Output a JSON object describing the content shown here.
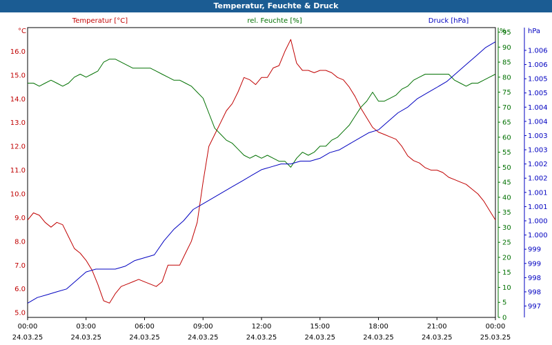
{
  "title": "Temperatur, Feuchte & Druck",
  "colors": {
    "temperature": "#c00000",
    "humidity": "#007000",
    "pressure": "#0000c0",
    "titlebar": "#1b5c93"
  },
  "chart_data": {
    "type": "line",
    "title": "Temperatur, Feuchte & Druck",
    "grid": true,
    "x_ticks": [
      {
        "time": "00:00",
        "date": "24.03.25"
      },
      {
        "time": "03:00",
        "date": "24.03.25"
      },
      {
        "time": "06:00",
        "date": "24.03.25"
      },
      {
        "time": "09:00",
        "date": "24.03.25"
      },
      {
        "time": "12:00",
        "date": "24.03.25"
      },
      {
        "time": "15:00",
        "date": "24.03.25"
      },
      {
        "time": "18:00",
        "date": "24.03.25"
      },
      {
        "time": "21:00",
        "date": "24.03.25"
      },
      {
        "time": "00:00",
        "date": "25.03.25"
      }
    ],
    "x_range_hours": [
      0,
      24
    ],
    "axes": {
      "temperature": {
        "label": "Temperatur [°C]",
        "unit": "°C",
        "range": [
          4.8,
          17.0
        ],
        "ticks": [
          "5.0",
          "6.0",
          "7.0",
          "8.0",
          "9.0",
          "10.0",
          "11.0",
          "12.0",
          "13.0",
          "14.0",
          "15.0",
          "16.0"
        ],
        "tick_values": [
          5,
          6,
          7,
          8,
          9,
          10,
          11,
          12,
          13,
          14,
          15,
          16
        ]
      },
      "humidity": {
        "label": "rel. Feuchte [%]",
        "unit": "%",
        "range": [
          0,
          96.5
        ],
        "ticks": [
          "0",
          "5",
          "10",
          "15",
          "20",
          "25",
          "30",
          "35",
          "40",
          "45",
          "50",
          "55",
          "60",
          "65",
          "70",
          "75",
          "80",
          "85",
          "90",
          "95"
        ],
        "tick_values": [
          0,
          5,
          10,
          15,
          20,
          25,
          30,
          35,
          40,
          45,
          50,
          55,
          60,
          65,
          70,
          75,
          80,
          85,
          90,
          95
        ]
      },
      "pressure": {
        "label": "Druck [hPa]",
        "unit": "hPa",
        "range": [
          996.6,
          1006.8
        ],
        "ticks": [
          "997",
          "998",
          "998",
          "999",
          "999",
          "1.000",
          "1.000",
          "1.001",
          "1.001",
          "1.002",
          "1.002",
          "1.003",
          "1.003",
          "1.004",
          "1.004",
          "1.005",
          "1.005",
          "1.006",
          "1.006"
        ],
        "tick_values": [
          997.0,
          997.5,
          998.0,
          998.5,
          999.0,
          999.5,
          1000.0,
          1000.5,
          1001.0,
          1001.5,
          1002.0,
          1002.5,
          1003.0,
          1003.5,
          1004.0,
          1004.5,
          1005.0,
          1005.5,
          1006.0
        ]
      }
    },
    "series": [
      {
        "name": "Temperatur [°C]",
        "axis": "temperature",
        "points": [
          [
            0,
            8.9
          ],
          [
            0.3,
            9.2
          ],
          [
            0.6,
            9.1
          ],
          [
            0.9,
            8.8
          ],
          [
            1.2,
            8.6
          ],
          [
            1.5,
            8.8
          ],
          [
            1.8,
            8.7
          ],
          [
            2.1,
            8.2
          ],
          [
            2.4,
            7.7
          ],
          [
            2.7,
            7.5
          ],
          [
            3.0,
            7.2
          ],
          [
            3.3,
            6.8
          ],
          [
            3.6,
            6.2
          ],
          [
            3.9,
            5.5
          ],
          [
            4.2,
            5.4
          ],
          [
            4.5,
            5.8
          ],
          [
            4.8,
            6.1
          ],
          [
            5.1,
            6.2
          ],
          [
            5.4,
            6.3
          ],
          [
            5.7,
            6.4
          ],
          [
            6.0,
            6.3
          ],
          [
            6.3,
            6.2
          ],
          [
            6.6,
            6.1
          ],
          [
            6.9,
            6.3
          ],
          [
            7.2,
            7.0
          ],
          [
            7.5,
            7.0
          ],
          [
            7.8,
            7.0
          ],
          [
            8.1,
            7.5
          ],
          [
            8.4,
            8.0
          ],
          [
            8.7,
            8.8
          ],
          [
            9.0,
            10.5
          ],
          [
            9.3,
            12.0
          ],
          [
            9.6,
            12.5
          ],
          [
            9.9,
            13.0
          ],
          [
            10.2,
            13.5
          ],
          [
            10.5,
            13.8
          ],
          [
            10.8,
            14.3
          ],
          [
            11.1,
            14.9
          ],
          [
            11.4,
            14.8
          ],
          [
            11.7,
            14.6
          ],
          [
            12.0,
            14.9
          ],
          [
            12.3,
            14.9
          ],
          [
            12.6,
            15.3
          ],
          [
            12.9,
            15.4
          ],
          [
            13.2,
            16.0
          ],
          [
            13.5,
            16.5
          ],
          [
            13.8,
            15.5
          ],
          [
            14.1,
            15.2
          ],
          [
            14.4,
            15.2
          ],
          [
            14.7,
            15.1
          ],
          [
            15.0,
            15.2
          ],
          [
            15.3,
            15.2
          ],
          [
            15.6,
            15.1
          ],
          [
            15.9,
            14.9
          ],
          [
            16.2,
            14.8
          ],
          [
            16.5,
            14.5
          ],
          [
            16.8,
            14.1
          ],
          [
            17.1,
            13.6
          ],
          [
            17.4,
            13.2
          ],
          [
            17.7,
            12.8
          ],
          [
            18.0,
            12.6
          ],
          [
            18.3,
            12.5
          ],
          [
            18.6,
            12.4
          ],
          [
            18.9,
            12.3
          ],
          [
            19.2,
            12.0
          ],
          [
            19.5,
            11.6
          ],
          [
            19.8,
            11.4
          ],
          [
            20.1,
            11.3
          ],
          [
            20.4,
            11.1
          ],
          [
            20.7,
            11.0
          ],
          [
            21.0,
            11.0
          ],
          [
            21.3,
            10.9
          ],
          [
            21.6,
            10.7
          ],
          [
            21.9,
            10.6
          ],
          [
            22.2,
            10.5
          ],
          [
            22.5,
            10.4
          ],
          [
            22.8,
            10.2
          ],
          [
            23.1,
            10.0
          ],
          [
            23.4,
            9.7
          ],
          [
            23.7,
            9.3
          ],
          [
            24.0,
            8.9
          ]
        ]
      },
      {
        "name": "rel. Feuchte [%]",
        "axis": "humidity",
        "points": [
          [
            0,
            78
          ],
          [
            0.3,
            78
          ],
          [
            0.6,
            77
          ],
          [
            0.9,
            78
          ],
          [
            1.2,
            79
          ],
          [
            1.5,
            78
          ],
          [
            1.8,
            77
          ],
          [
            2.1,
            78
          ],
          [
            2.4,
            80
          ],
          [
            2.7,
            81
          ],
          [
            3.0,
            80
          ],
          [
            3.3,
            81
          ],
          [
            3.6,
            82
          ],
          [
            3.9,
            85
          ],
          [
            4.2,
            86
          ],
          [
            4.5,
            86
          ],
          [
            4.8,
            85
          ],
          [
            5.1,
            84
          ],
          [
            5.4,
            83
          ],
          [
            5.7,
            83
          ],
          [
            6.0,
            83
          ],
          [
            6.3,
            83
          ],
          [
            6.6,
            82
          ],
          [
            6.9,
            81
          ],
          [
            7.2,
            80
          ],
          [
            7.5,
            79
          ],
          [
            7.8,
            79
          ],
          [
            8.1,
            78
          ],
          [
            8.4,
            77
          ],
          [
            8.7,
            75
          ],
          [
            9.0,
            73
          ],
          [
            9.3,
            68
          ],
          [
            9.6,
            63
          ],
          [
            9.9,
            61
          ],
          [
            10.2,
            59
          ],
          [
            10.5,
            58
          ],
          [
            10.8,
            56
          ],
          [
            11.1,
            54
          ],
          [
            11.4,
            53
          ],
          [
            11.7,
            54
          ],
          [
            12.0,
            53
          ],
          [
            12.3,
            54
          ],
          [
            12.6,
            53
          ],
          [
            12.9,
            52
          ],
          [
            13.2,
            52
          ],
          [
            13.5,
            50
          ],
          [
            13.8,
            53
          ],
          [
            14.1,
            55
          ],
          [
            14.4,
            54
          ],
          [
            14.7,
            55
          ],
          [
            15.0,
            57
          ],
          [
            15.3,
            57
          ],
          [
            15.6,
            59
          ],
          [
            15.9,
            60
          ],
          [
            16.2,
            62
          ],
          [
            16.5,
            64
          ],
          [
            16.8,
            67
          ],
          [
            17.1,
            70
          ],
          [
            17.4,
            72
          ],
          [
            17.7,
            75
          ],
          [
            18.0,
            72
          ],
          [
            18.3,
            72
          ],
          [
            18.6,
            73
          ],
          [
            18.9,
            74
          ],
          [
            19.2,
            76
          ],
          [
            19.5,
            77
          ],
          [
            19.8,
            79
          ],
          [
            20.1,
            80
          ],
          [
            20.4,
            81
          ],
          [
            20.7,
            81
          ],
          [
            21.0,
            81
          ],
          [
            21.3,
            81
          ],
          [
            21.6,
            81
          ],
          [
            21.9,
            79
          ],
          [
            22.2,
            78
          ],
          [
            22.5,
            77
          ],
          [
            22.8,
            78
          ],
          [
            23.1,
            78
          ],
          [
            23.4,
            79
          ],
          [
            23.7,
            80
          ],
          [
            24.0,
            81
          ]
        ]
      },
      {
        "name": "Druck [hPa]",
        "axis": "pressure",
        "points": [
          [
            0,
            997.1
          ],
          [
            0.5,
            997.3
          ],
          [
            1.0,
            997.4
          ],
          [
            1.5,
            997.5
          ],
          [
            2.0,
            997.6
          ],
          [
            2.5,
            997.9
          ],
          [
            3.0,
            998.2
          ],
          [
            3.5,
            998.3
          ],
          [
            4.0,
            998.3
          ],
          [
            4.5,
            998.3
          ],
          [
            5.0,
            998.4
          ],
          [
            5.5,
            998.6
          ],
          [
            6.0,
            998.7
          ],
          [
            6.5,
            998.8
          ],
          [
            7.0,
            999.3
          ],
          [
            7.5,
            999.7
          ],
          [
            8.0,
            1000.0
          ],
          [
            8.5,
            1000.4
          ],
          [
            9.0,
            1000.6
          ],
          [
            9.5,
            1000.8
          ],
          [
            10.0,
            1001.0
          ],
          [
            10.5,
            1001.2
          ],
          [
            11.0,
            1001.4
          ],
          [
            11.5,
            1001.6
          ],
          [
            12.0,
            1001.8
          ],
          [
            12.5,
            1001.9
          ],
          [
            13.0,
            1002.0
          ],
          [
            13.5,
            1002.0
          ],
          [
            14.0,
            1002.1
          ],
          [
            14.5,
            1002.1
          ],
          [
            15.0,
            1002.2
          ],
          [
            15.5,
            1002.4
          ],
          [
            16.0,
            1002.5
          ],
          [
            16.5,
            1002.7
          ],
          [
            17.0,
            1002.9
          ],
          [
            17.5,
            1003.1
          ],
          [
            18.0,
            1003.2
          ],
          [
            18.5,
            1003.5
          ],
          [
            19.0,
            1003.8
          ],
          [
            19.5,
            1004.0
          ],
          [
            20.0,
            1004.3
          ],
          [
            20.5,
            1004.5
          ],
          [
            21.0,
            1004.7
          ],
          [
            21.5,
            1004.9
          ],
          [
            22.0,
            1005.2
          ],
          [
            22.5,
            1005.5
          ],
          [
            23.0,
            1005.8
          ],
          [
            23.5,
            1006.1
          ],
          [
            24.0,
            1006.3
          ]
        ]
      }
    ]
  }
}
